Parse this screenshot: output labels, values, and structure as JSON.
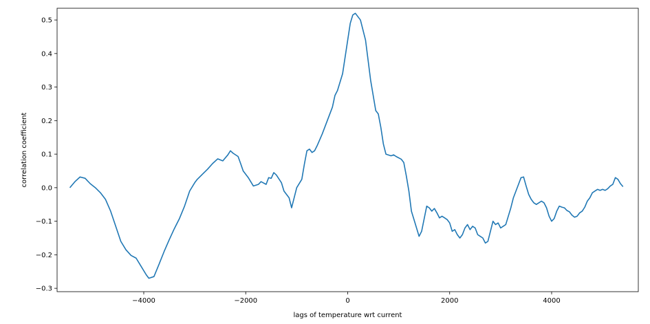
{
  "chart_data": {
    "type": "line",
    "xlabel": "lags of temperature wrt current",
    "ylabel": "correlation coefficient",
    "xlim": [
      -5700,
      5700
    ],
    "ylim": [
      -0.31,
      0.535
    ],
    "x_ticks": [
      -4000,
      -2000,
      0,
      2000,
      4000
    ],
    "x_tick_labels": [
      "−4000",
      "−2000",
      "0",
      "2000",
      "4000"
    ],
    "y_ticks": [
      -0.3,
      -0.2,
      -0.1,
      0.0,
      0.1,
      0.2,
      0.3,
      0.4,
      0.5
    ],
    "y_tick_labels": [
      "−0.3",
      "−0.2",
      "−0.1",
      "0.0",
      "0.1",
      "0.2",
      "0.3",
      "0.4",
      "0.5"
    ],
    "grid": false,
    "line_color": "#1f77b4",
    "series": [
      {
        "points": [
          [
            -5450,
            0.0
          ],
          [
            -5350,
            0.018
          ],
          [
            -5250,
            0.032
          ],
          [
            -5150,
            0.028
          ],
          [
            -5050,
            0.012
          ],
          [
            -4950,
            0.0
          ],
          [
            -4850,
            -0.015
          ],
          [
            -4750,
            -0.035
          ],
          [
            -4650,
            -0.07
          ],
          [
            -4550,
            -0.115
          ],
          [
            -4450,
            -0.16
          ],
          [
            -4350,
            -0.185
          ],
          [
            -4250,
            -0.202
          ],
          [
            -4150,
            -0.21
          ],
          [
            -4050,
            -0.235
          ],
          [
            -3950,
            -0.26
          ],
          [
            -3900,
            -0.27
          ],
          [
            -3800,
            -0.265
          ],
          [
            -3700,
            -0.228
          ],
          [
            -3600,
            -0.19
          ],
          [
            -3500,
            -0.155
          ],
          [
            -3400,
            -0.122
          ],
          [
            -3300,
            -0.092
          ],
          [
            -3200,
            -0.055
          ],
          [
            -3100,
            -0.01
          ],
          [
            -3000,
            0.015
          ],
          [
            -2950,
            0.025
          ],
          [
            -2850,
            0.04
          ],
          [
            -2750,
            0.055
          ],
          [
            -2650,
            0.072
          ],
          [
            -2550,
            0.086
          ],
          [
            -2450,
            0.08
          ],
          [
            -2350,
            0.098
          ],
          [
            -2300,
            0.11
          ],
          [
            -2250,
            0.103
          ],
          [
            -2150,
            0.093
          ],
          [
            -2100,
            0.072
          ],
          [
            -2050,
            0.05
          ],
          [
            -1950,
            0.03
          ],
          [
            -1850,
            0.005
          ],
          [
            -1750,
            0.01
          ],
          [
            -1700,
            0.018
          ],
          [
            -1600,
            0.01
          ],
          [
            -1550,
            0.03
          ],
          [
            -1500,
            0.028
          ],
          [
            -1450,
            0.045
          ],
          [
            -1400,
            0.038
          ],
          [
            -1300,
            0.015
          ],
          [
            -1250,
            -0.01
          ],
          [
            -1150,
            -0.03
          ],
          [
            -1100,
            -0.06
          ],
          [
            -1050,
            -0.03
          ],
          [
            -1000,
            0.0
          ],
          [
            -900,
            0.025
          ],
          [
            -850,
            0.07
          ],
          [
            -800,
            0.11
          ],
          [
            -750,
            0.115
          ],
          [
            -700,
            0.105
          ],
          [
            -650,
            0.11
          ],
          [
            -600,
            0.125
          ],
          [
            -500,
            0.16
          ],
          [
            -400,
            0.2
          ],
          [
            -300,
            0.24
          ],
          [
            -250,
            0.275
          ],
          [
            -200,
            0.29
          ],
          [
            -100,
            0.34
          ],
          [
            -50,
            0.39
          ],
          [
            0,
            0.44
          ],
          [
            50,
            0.49
          ],
          [
            100,
            0.515
          ],
          [
            150,
            0.52
          ],
          [
            250,
            0.5
          ],
          [
            350,
            0.44
          ],
          [
            450,
            0.32
          ],
          [
            550,
            0.23
          ],
          [
            600,
            0.22
          ],
          [
            650,
            0.18
          ],
          [
            700,
            0.13
          ],
          [
            750,
            0.1
          ],
          [
            850,
            0.095
          ],
          [
            900,
            0.098
          ],
          [
            950,
            0.093
          ],
          [
            1050,
            0.085
          ],
          [
            1100,
            0.075
          ],
          [
            1150,
            0.035
          ],
          [
            1200,
            -0.01
          ],
          [
            1250,
            -0.07
          ],
          [
            1300,
            -0.095
          ],
          [
            1350,
            -0.12
          ],
          [
            1400,
            -0.145
          ],
          [
            1450,
            -0.13
          ],
          [
            1550,
            -0.055
          ],
          [
            1600,
            -0.06
          ],
          [
            1650,
            -0.07
          ],
          [
            1700,
            -0.062
          ],
          [
            1750,
            -0.075
          ],
          [
            1800,
            -0.09
          ],
          [
            1850,
            -0.085
          ],
          [
            1900,
            -0.09
          ],
          [
            1950,
            -0.095
          ],
          [
            2000,
            -0.105
          ],
          [
            2050,
            -0.13
          ],
          [
            2100,
            -0.125
          ],
          [
            2150,
            -0.14
          ],
          [
            2200,
            -0.15
          ],
          [
            2250,
            -0.14
          ],
          [
            2300,
            -0.12
          ],
          [
            2350,
            -0.11
          ],
          [
            2400,
            -0.125
          ],
          [
            2450,
            -0.115
          ],
          [
            2500,
            -0.12
          ],
          [
            2550,
            -0.14
          ],
          [
            2600,
            -0.145
          ],
          [
            2650,
            -0.15
          ],
          [
            2700,
            -0.165
          ],
          [
            2750,
            -0.16
          ],
          [
            2800,
            -0.13
          ],
          [
            2850,
            -0.1
          ],
          [
            2900,
            -0.11
          ],
          [
            2950,
            -0.105
          ],
          [
            3000,
            -0.12
          ],
          [
            3050,
            -0.115
          ],
          [
            3100,
            -0.11
          ],
          [
            3150,
            -0.085
          ],
          [
            3200,
            -0.06
          ],
          [
            3250,
            -0.03
          ],
          [
            3300,
            -0.01
          ],
          [
            3350,
            0.01
          ],
          [
            3400,
            0.03
          ],
          [
            3450,
            0.032
          ],
          [
            3500,
            0.005
          ],
          [
            3550,
            -0.02
          ],
          [
            3600,
            -0.035
          ],
          [
            3650,
            -0.045
          ],
          [
            3700,
            -0.05
          ],
          [
            3750,
            -0.045
          ],
          [
            3800,
            -0.04
          ],
          [
            3850,
            -0.045
          ],
          [
            3900,
            -0.06
          ],
          [
            3950,
            -0.085
          ],
          [
            4000,
            -0.1
          ],
          [
            4050,
            -0.092
          ],
          [
            4100,
            -0.07
          ],
          [
            4150,
            -0.055
          ],
          [
            4200,
            -0.058
          ],
          [
            4250,
            -0.06
          ],
          [
            4300,
            -0.068
          ],
          [
            4350,
            -0.072
          ],
          [
            4400,
            -0.082
          ],
          [
            4450,
            -0.088
          ],
          [
            4500,
            -0.085
          ],
          [
            4550,
            -0.075
          ],
          [
            4600,
            -0.07
          ],
          [
            4650,
            -0.058
          ],
          [
            4700,
            -0.04
          ],
          [
            4750,
            -0.03
          ],
          [
            4800,
            -0.015
          ],
          [
            4850,
            -0.01
          ],
          [
            4900,
            -0.005
          ],
          [
            4950,
            -0.008
          ],
          [
            5000,
            -0.005
          ],
          [
            5050,
            -0.008
          ],
          [
            5100,
            -0.003
          ],
          [
            5150,
            0.005
          ],
          [
            5200,
            0.01
          ],
          [
            5250,
            0.03
          ],
          [
            5300,
            0.025
          ],
          [
            5350,
            0.012
          ],
          [
            5400,
            0.003
          ]
        ]
      }
    ]
  }
}
